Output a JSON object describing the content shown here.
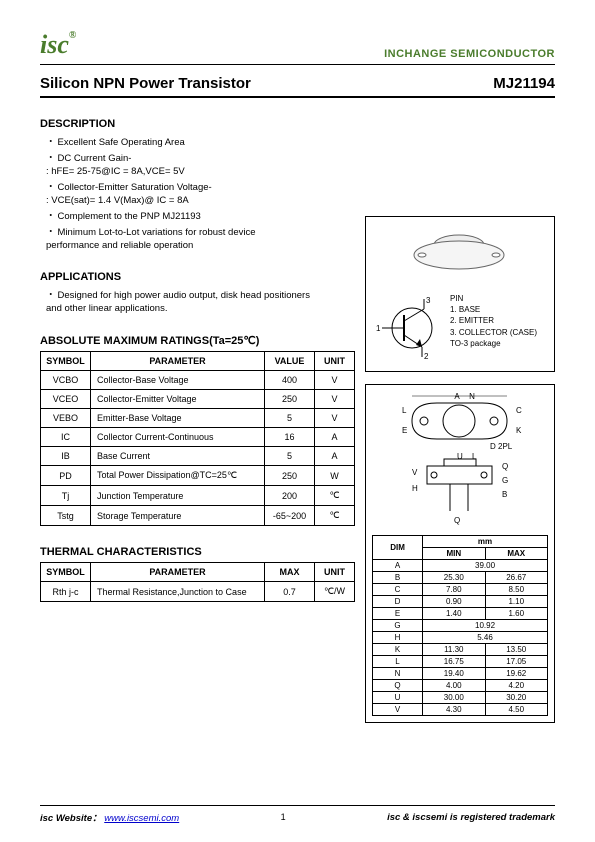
{
  "header": {
    "logo_text": "isc",
    "logo_reg": "®",
    "company": "INCHANGE SEMICONDUCTOR"
  },
  "title": {
    "left": "Silicon NPN Power Transistor",
    "right": "MJ21194"
  },
  "description": {
    "heading": "DESCRIPTION",
    "items": [
      "Excellent Safe Operating Area",
      "DC Current Gain-",
      ": hFE= 25-75@IC = 8A,VCE= 5V",
      "Collector-Emitter Saturation Voltage-",
      ": VCE(sat)= 1.4 V(Max)@ IC = 8A",
      "Complement to the PNP MJ21193",
      "Minimum Lot-to-Lot variations for robust device",
      "performance and reliable operation"
    ]
  },
  "applications": {
    "heading": "APPLICATIONS",
    "text1": "Designed for high power audio output, disk head positioners",
    "text2": "and other linear applications."
  },
  "ratings": {
    "heading": "ABSOLUTE MAXIMUM RATINGS(Ta=25℃)",
    "headers": [
      "SYMBOL",
      "PARAMETER",
      "VALUE",
      "UNIT"
    ],
    "rows": [
      [
        "VCBO",
        "Collector-Base Voltage",
        "400",
        "V"
      ],
      [
        "VCEO",
        "Collector-Emitter Voltage",
        "250",
        "V"
      ],
      [
        "VEBO",
        "Emitter-Base Voltage",
        "5",
        "V"
      ],
      [
        "IC",
        "Collector Current-Continuous",
        "16",
        "A"
      ],
      [
        "IB",
        "Base Current",
        "5",
        "A"
      ],
      [
        "PD",
        "Total Power Dissipation@TC=25℃",
        "250",
        "W"
      ],
      [
        "Tj",
        "Junction Temperature",
        "200",
        "℃"
      ],
      [
        "Tstg",
        "Storage Temperature",
        "-65~200",
        "℃"
      ]
    ]
  },
  "thermal": {
    "heading": "THERMAL CHARACTERISTICS",
    "headers": [
      "SYMBOL",
      "PARAMETER",
      "MAX",
      "UNIT"
    ],
    "rows": [
      [
        "Rth j-c",
        "Thermal Resistance,Junction to Case",
        "0.7",
        "℃/W"
      ]
    ]
  },
  "pinout": {
    "pin": "PIN",
    "p1": "1. BASE",
    "p2": "2. EMITTER",
    "p3": "3. COLLECTOR (CASE)",
    "pkg": "TO-3 package"
  },
  "dims": {
    "headers": [
      "DIM",
      "MIN",
      "MAX"
    ],
    "mm_label": "mm",
    "rows": [
      [
        "A",
        "39.00",
        ""
      ],
      [
        "B",
        "25.30",
        "26.67"
      ],
      [
        "C",
        "7.80",
        "8.50"
      ],
      [
        "D",
        "0.90",
        "1.10"
      ],
      [
        "E",
        "1.40",
        "1.60"
      ],
      [
        "G",
        "10.92",
        ""
      ],
      [
        "H",
        "5.46",
        ""
      ],
      [
        "K",
        "11.30",
        "13.50"
      ],
      [
        "L",
        "16.75",
        "17.05"
      ],
      [
        "N",
        "19.40",
        "19.62"
      ],
      [
        "Q",
        "4.00",
        "4.20"
      ],
      [
        "U",
        "30.00",
        "30.20"
      ],
      [
        "V",
        "4.30",
        "4.50"
      ]
    ]
  },
  "footer": {
    "website_label": "isc Website：",
    "website_url": "www.iscsemi.com",
    "page": "1",
    "trademark": "isc & iscsemi is registered trademark"
  },
  "colors": {
    "brand": "#4a7c2c",
    "link": "#0000cc"
  }
}
